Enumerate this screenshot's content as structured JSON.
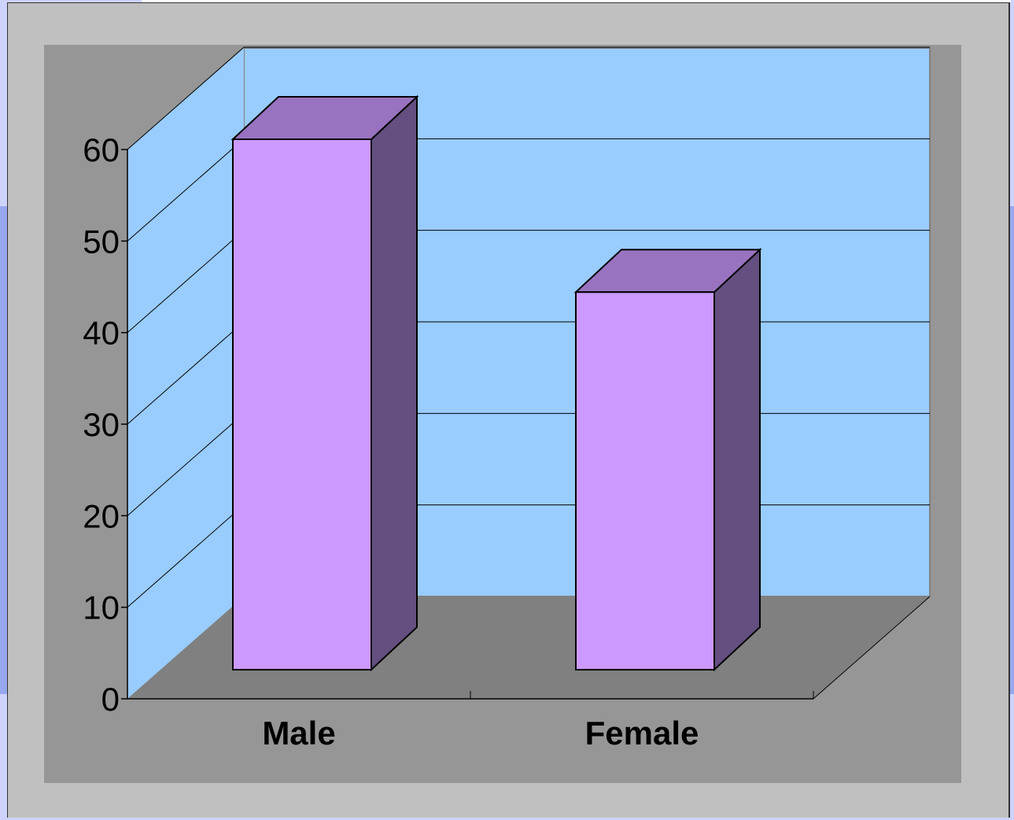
{
  "chart_data": {
    "type": "bar",
    "categories": [
      "Male",
      "Female"
    ],
    "values": [
      59,
      42
    ],
    "ylim": [
      0,
      60
    ],
    "yticks": [
      "0",
      "10",
      "20",
      "30",
      "40",
      "50",
      "60"
    ],
    "grid": true,
    "legend": "none",
    "style": "3d-column"
  },
  "colors": {
    "bar_front": "#cc99ff",
    "bar_top": "#9973c0",
    "bar_side": "#644f80",
    "plot_back_wall": "#99ccff",
    "plot_floor": "#808080",
    "chart_area": "#969696",
    "frame": "#c0c0c0"
  }
}
